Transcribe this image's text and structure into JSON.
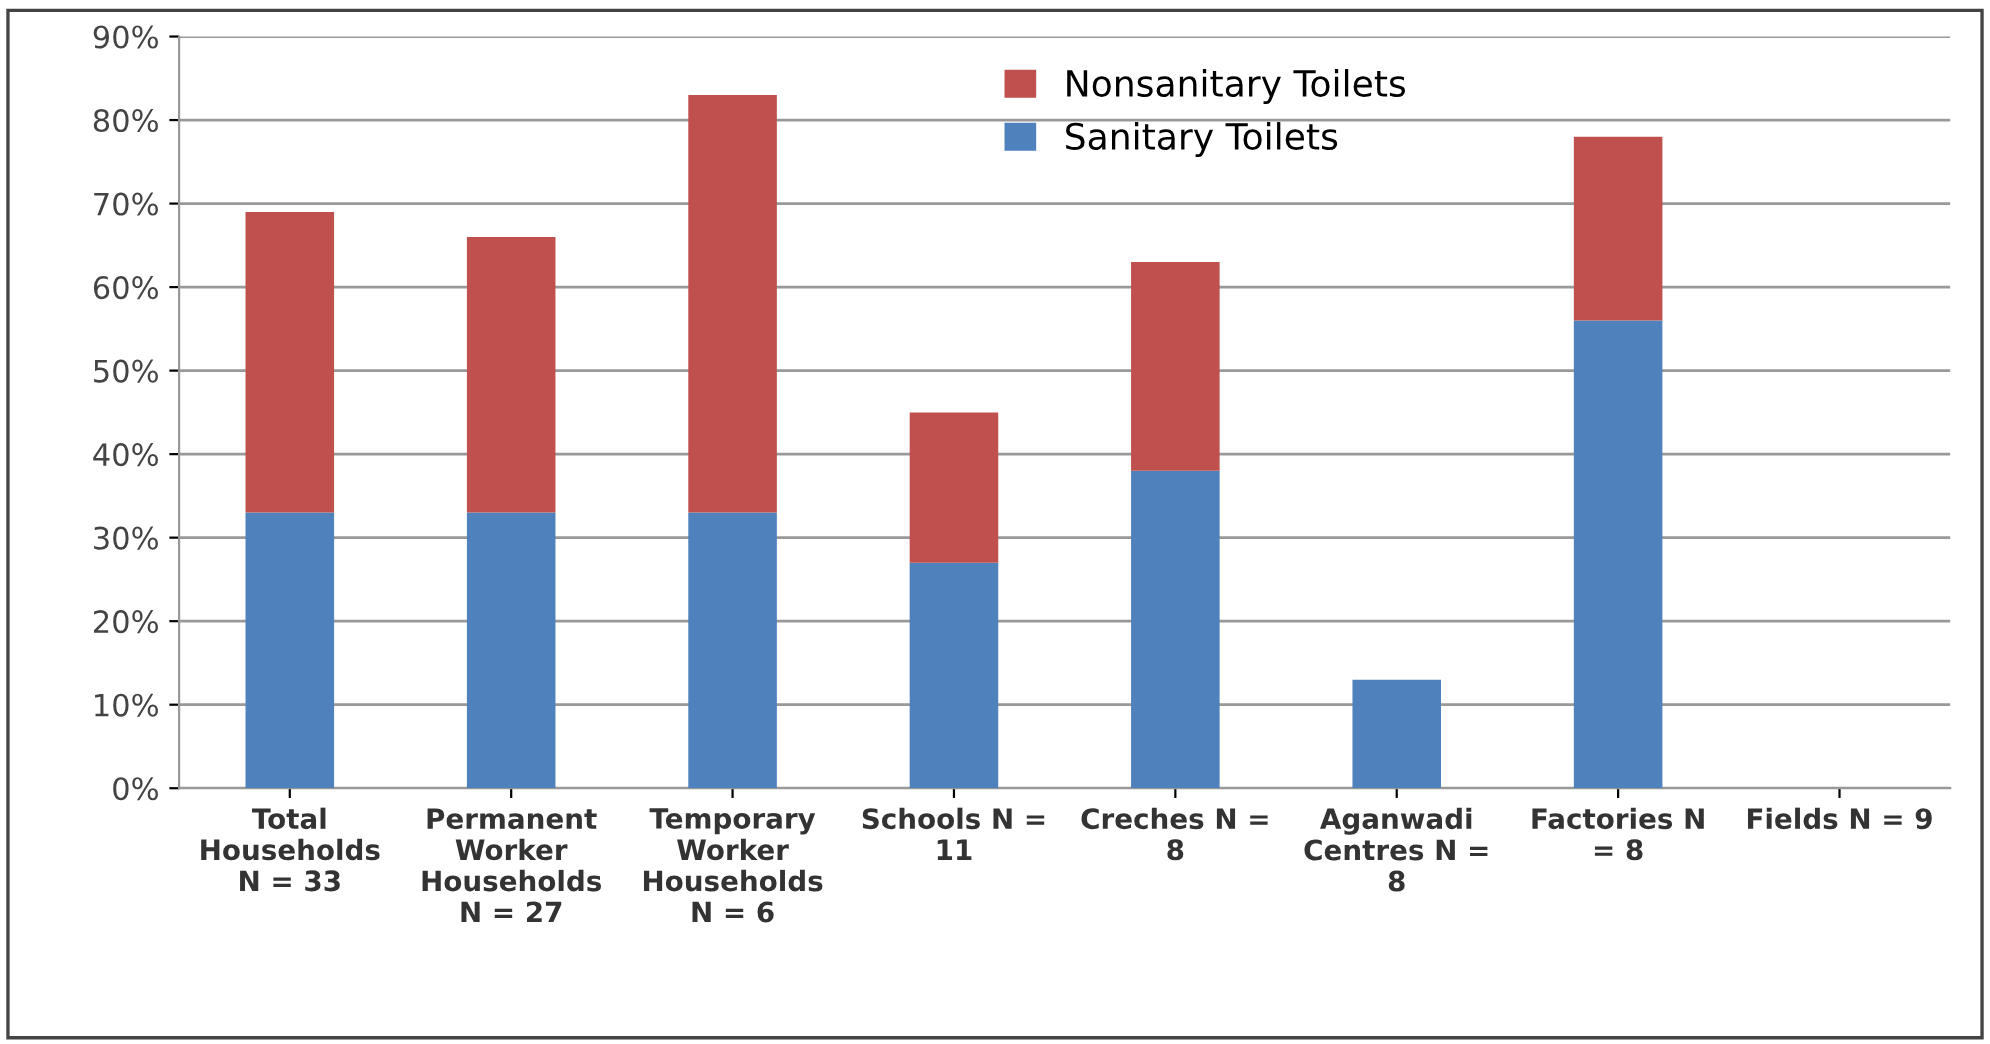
{
  "chart_data": {
    "type": "bar",
    "stacked": true,
    "categories": [
      "Total\nHouseholds\nN = 33",
      "Permanent\nWorker\nHouseholds\nN = 27",
      "Temporary\nWorker\nHouseholds\nN = 6",
      "Schools N =\n11",
      "Creches N =\n8",
      "Aganwadi\nCentres N =\n8",
      "Factories N\n= 8",
      "Fields N = 9"
    ],
    "series": [
      {
        "name": "Sanitary Toilets",
        "color": "#4f81bd",
        "values": [
          33,
          33,
          33,
          27,
          38,
          13,
          56,
          0
        ]
      },
      {
        "name": "Nonsanitary Toilets",
        "color": "#c0504d",
        "values": [
          36,
          33,
          50,
          18,
          25,
          0,
          22,
          0
        ]
      }
    ],
    "ylim": [
      0,
      90
    ],
    "yticks": [
      {
        "value": 0,
        "label": "0%"
      },
      {
        "value": 10,
        "label": "10%"
      },
      {
        "value": 20,
        "label": "20%"
      },
      {
        "value": 30,
        "label": "30%"
      },
      {
        "value": 40,
        "label": "40%"
      },
      {
        "value": 50,
        "label": "50%"
      },
      {
        "value": 60,
        "label": "60%"
      },
      {
        "value": 70,
        "label": "70%"
      },
      {
        "value": 80,
        "label": "80%"
      },
      {
        "value": 90,
        "label": "90%"
      }
    ],
    "grid": "y",
    "legend": "top"
  }
}
